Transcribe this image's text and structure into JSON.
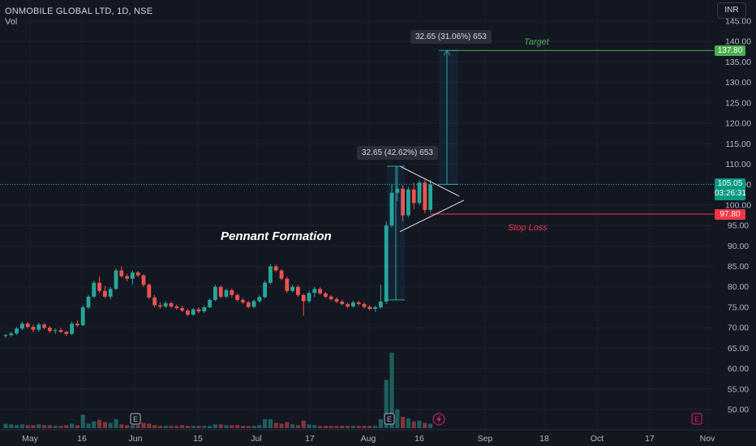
{
  "header": {
    "symbol_line": "ONMOBILE GLOBAL LTD, 1D, NSE",
    "volume_label": "Vol",
    "currency": "INR"
  },
  "annotations": {
    "pennant_label": "Pennant Formation",
    "target_label": "Target",
    "stop_loss_label": "Stop Loss",
    "measure_upper": "32.65 (31.06%) 653",
    "measure_lower": "32.65 (42.62%) 653",
    "event_marker": "E"
  },
  "price_tags": {
    "target": "137.80",
    "current": "105.05",
    "countdown": "03:26:31",
    "stop_loss": "97.80"
  },
  "colors": {
    "background": "#131722",
    "up": "#26a69a",
    "down": "#ef5350",
    "target": "#4caf50",
    "stop": "#f23645",
    "measure": "#2196f3"
  },
  "chart_data": {
    "type": "candlestick",
    "title": "ONMOBILE GLOBAL LTD, 1D, NSE",
    "y_axis": {
      "ticks": [
        "50.00",
        "55.00",
        "60.00",
        "65.00",
        "70.00",
        "75.00",
        "80.00",
        "85.00",
        "90.00",
        "95.00",
        "100.00",
        "105.00",
        "110.00",
        "115.00",
        "120.00",
        "125.00",
        "130.00",
        "135.00",
        "140.00",
        "145.00"
      ],
      "range": [
        46.5,
        147.0
      ]
    },
    "x_axis": {
      "ticks": [
        "May",
        "16",
        "Jun",
        "15",
        "Jul",
        "17",
        "Aug",
        "16",
        "Sep",
        "18",
        "Oct",
        "17",
        "Nov"
      ]
    },
    "levels": {
      "target": 137.8,
      "current": 105.05,
      "stop_loss": 97.8
    },
    "candles": [
      [
        68,
        68.5,
        67.5,
        68.2
      ],
      [
        68.2,
        69,
        67.8,
        68.6
      ],
      [
        68.6,
        70.2,
        68.2,
        69.8
      ],
      [
        69.8,
        71.5,
        69.4,
        71
      ],
      [
        71,
        71.4,
        69.8,
        70.2
      ],
      [
        70.2,
        70.8,
        68.9,
        69.5
      ],
      [
        69.5,
        71.2,
        69,
        70.8
      ],
      [
        70.8,
        71.2,
        69.6,
        70
      ],
      [
        70,
        70.4,
        68.8,
        69.2
      ],
      [
        69.2,
        69.8,
        68.5,
        69.4
      ],
      [
        69.4,
        70,
        68.7,
        69
      ],
      [
        69,
        69.3,
        68,
        68.5
      ],
      [
        68.5,
        71.5,
        68.2,
        71
      ],
      [
        71,
        71.8,
        70.2,
        70.6
      ],
      [
        70.6,
        75.5,
        70.4,
        75
      ],
      [
        75,
        78,
        74.5,
        77.6
      ],
      [
        77.6,
        81.5,
        77.2,
        81
      ],
      [
        81,
        82.5,
        78.5,
        79
      ],
      [
        79,
        80.2,
        77.2,
        77.6
      ],
      [
        77.6,
        80,
        77,
        79.5
      ],
      [
        79.5,
        84.5,
        79.2,
        84
      ],
      [
        84,
        85,
        82.2,
        82.6
      ],
      [
        82.6,
        83.2,
        81.4,
        82
      ],
      [
        82,
        84,
        80.6,
        83.5
      ],
      [
        83.5,
        83.9,
        82.4,
        82.8
      ],
      [
        82.8,
        83.1,
        80,
        80.5
      ],
      [
        80.5,
        80.9,
        77,
        77.4
      ],
      [
        77.4,
        78,
        75,
        75.5
      ],
      [
        75.5,
        76.2,
        74.6,
        75.2
      ],
      [
        75.2,
        76.5,
        74.8,
        76
      ],
      [
        76,
        76.4,
        74.8,
        75.2
      ],
      [
        75.2,
        75.7,
        74.4,
        74.8
      ],
      [
        74.8,
        75.4,
        73.8,
        74.2
      ],
      [
        74.2,
        74.6,
        72.8,
        73.2
      ],
      [
        73.2,
        74.8,
        72.9,
        74.5
      ],
      [
        74.5,
        75,
        73.5,
        74
      ],
      [
        74,
        75.5,
        73.6,
        75
      ],
      [
        75,
        77.2,
        74.8,
        76.8
      ],
      [
        76.8,
        80.5,
        76.5,
        80
      ],
      [
        80,
        80.4,
        77.2,
        77.6
      ],
      [
        77.6,
        79.6,
        77.2,
        79.2
      ],
      [
        79.2,
        79.6,
        77.4,
        78
      ],
      [
        78,
        78.4,
        76.4,
        76.8
      ],
      [
        76.8,
        77.2,
        75.8,
        76.2
      ],
      [
        76.2,
        76.6,
        74.7,
        75.1
      ],
      [
        75.1,
        76.9,
        74.7,
        76.5
      ],
      [
        76.5,
        77.9,
        76.1,
        77.5
      ],
      [
        77.5,
        81.5,
        77.2,
        81
      ],
      [
        81,
        85.5,
        80.6,
        85
      ],
      [
        85,
        85.4,
        83.6,
        84
      ],
      [
        84,
        84.4,
        81.6,
        82
      ],
      [
        82,
        82.5,
        78.5,
        79
      ],
      [
        79,
        80.5,
        78.6,
        80
      ],
      [
        80,
        80.4,
        77.5,
        78
      ],
      [
        78,
        78.3,
        73,
        76.5
      ],
      [
        76.5,
        79,
        76,
        78.5
      ],
      [
        78.5,
        80,
        77.5,
        79.5
      ],
      [
        79.5,
        79.9,
        78,
        78.4
      ],
      [
        78.4,
        78.8,
        77.2,
        77.6
      ],
      [
        77.6,
        78,
        76.6,
        77
      ],
      [
        77,
        77.4,
        76,
        76.4
      ],
      [
        76.4,
        76.8,
        75.5,
        75.8
      ],
      [
        75.8,
        76.2,
        74.8,
        75.2
      ],
      [
        75.2,
        76.6,
        74.9,
        76.2
      ],
      [
        76.2,
        76.6,
        75.3,
        75.8
      ],
      [
        75.8,
        76.2,
        74.7,
        75.1
      ],
      [
        75.1,
        75.5,
        74.2,
        74.6
      ],
      [
        74.6,
        75.4,
        73.9,
        75
      ],
      [
        75,
        80.5,
        74.7,
        76.4
      ],
      [
        76.4,
        96,
        75.8,
        95
      ],
      [
        95,
        105,
        94.5,
        103
      ],
      [
        103,
        109.5,
        101,
        104
      ],
      [
        104,
        104.8,
        96,
        97.5
      ],
      [
        97.5,
        104.5,
        97,
        103.8
      ],
      [
        103.8,
        105.5,
        99,
        100.5
      ],
      [
        100.5,
        106,
        100,
        105.5
      ],
      [
        105.5,
        106.2,
        98,
        98.8
      ],
      [
        98.8,
        106.2,
        98.2,
        105.05
      ]
    ],
    "volume": [
      6,
      5,
      4,
      5,
      4,
      4,
      5,
      4,
      4,
      3,
      3,
      4,
      6,
      4,
      18,
      6,
      9,
      11,
      8,
      7,
      12,
      5,
      4,
      4,
      4,
      7,
      6,
      4,
      3,
      3,
      3,
      3,
      4,
      3,
      3,
      3,
      3,
      3,
      5,
      5,
      4,
      4,
      4,
      3,
      3,
      3,
      4,
      12,
      12,
      7,
      6,
      8,
      5,
      4,
      10,
      5,
      4,
      3,
      3,
      3,
      3,
      3,
      3,
      3,
      3,
      3,
      3,
      3,
      12,
      64,
      100,
      25,
      15,
      13,
      9,
      10,
      7,
      6
    ]
  }
}
